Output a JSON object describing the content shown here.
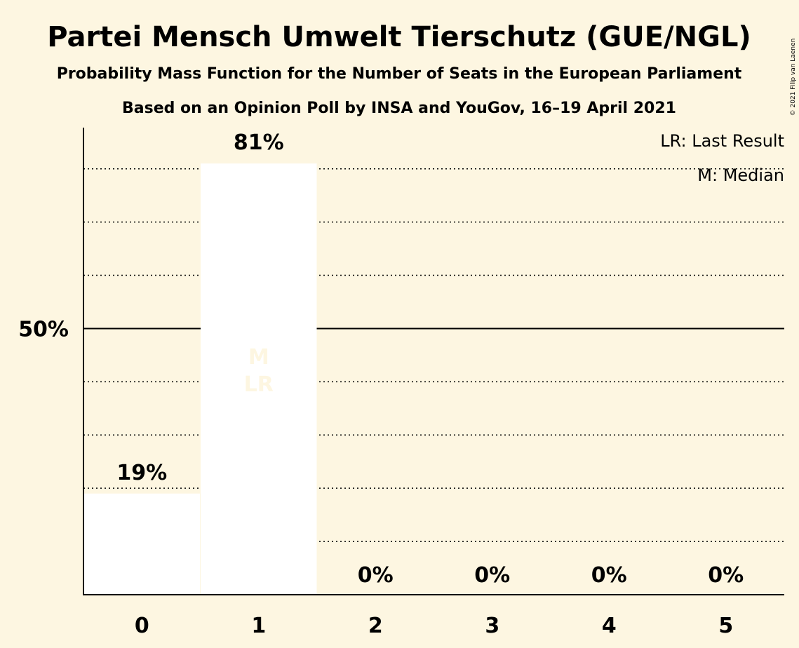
{
  "chart_data": {
    "type": "bar",
    "title": "Partei Mensch Umwelt Tierschutz (GUE/NGL)",
    "subtitle": "Probability Mass Function for the Number of Seats in the European Parliament",
    "source": "Based on an Opinion Poll by INSA and YouGov, 16–19 April 2021",
    "categories": [
      "0",
      "1",
      "2",
      "3",
      "4",
      "5"
    ],
    "values": [
      19,
      81,
      0,
      0,
      0,
      0
    ],
    "value_labels": [
      "19%",
      "81%",
      "0%",
      "0%",
      "0%",
      "0%"
    ],
    "ylim": [
      0,
      88
    ],
    "y_ticks": [
      {
        "value": 50,
        "label": "50%"
      }
    ],
    "grid_values": [
      10,
      20,
      30,
      40,
      60,
      70,
      80
    ],
    "bar_color": "#ffffff",
    "last_result_category": "1",
    "median_category": "1",
    "inbar_median": "M",
    "inbar_last_result": "LR",
    "legend": {
      "position": "top-right",
      "entries": [
        "LR: Last Result",
        "M: Median"
      ]
    },
    "copyright": "© 2021 Filip van Laenen",
    "grid": true
  }
}
